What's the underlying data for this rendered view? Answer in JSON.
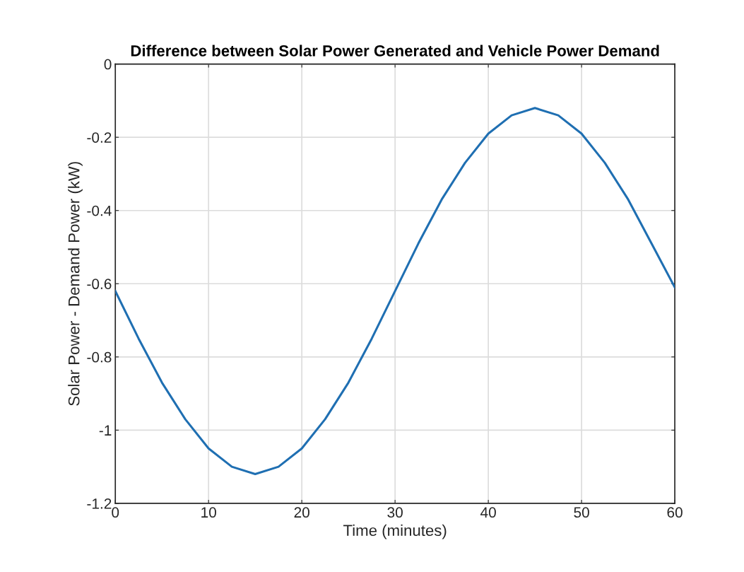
{
  "chart_data": {
    "type": "line",
    "title": "Difference between Solar Power Generated and Vehicle Power Demand",
    "xlabel": "Time (minutes)",
    "ylabel": "Solar Power - Demand Power (kW)",
    "x": [
      0,
      2.5,
      5,
      7.5,
      10,
      12.5,
      15,
      17.5,
      20,
      22.5,
      25,
      27.5,
      30,
      32.5,
      35,
      37.5,
      40,
      42.5,
      45,
      47.5,
      50,
      52.5,
      55,
      57.5,
      60
    ],
    "series": [
      {
        "color": "#1f6fb2",
        "values": [
          -0.62,
          -0.75,
          -0.87,
          -0.97,
          -1.05,
          -1.1,
          -1.12,
          -1.1,
          -1.05,
          -0.97,
          -0.87,
          -0.75,
          -0.62,
          -0.49,
          -0.37,
          -0.27,
          -0.19,
          -0.14,
          -0.12,
          -0.14,
          -0.19,
          -0.27,
          -0.37,
          -0.49,
          -0.61
        ]
      }
    ],
    "xlim": [
      0,
      60
    ],
    "xticks": [
      0,
      10,
      20,
      30,
      40,
      50,
      60
    ],
    "ylim": [
      -1.2,
      0
    ],
    "yticks": [
      {
        "value": -1.2,
        "label": "-1.2"
      },
      {
        "value": -1,
        "label": "-1"
      },
      {
        "value": -0.8,
        "label": "-0.8"
      },
      {
        "value": -0.6,
        "label": "-0.6"
      },
      {
        "value": -0.4,
        "label": "-0.4"
      },
      {
        "value": -0.2,
        "label": "-0.2"
      },
      {
        "value": 0,
        "label": "0"
      }
    ],
    "grid": true,
    "marker": "none",
    "line_style": "solid"
  }
}
